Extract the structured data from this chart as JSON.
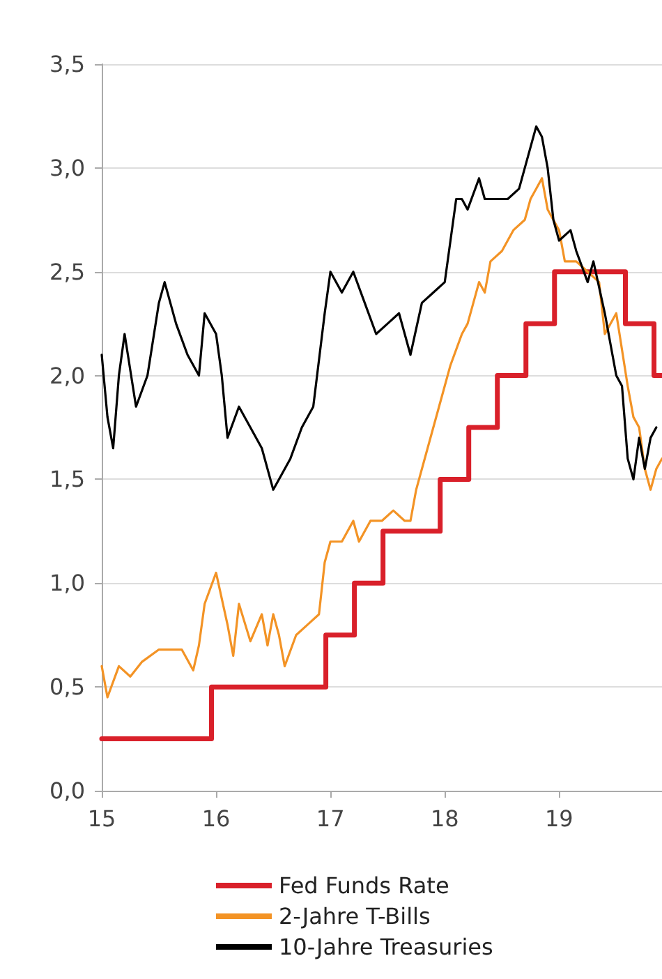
{
  "chart_data": {
    "type": "line",
    "xlim": [
      15,
      19.9
    ],
    "xticks": [
      15,
      16,
      17,
      18,
      19
    ],
    "ylim": [
      0,
      3.5
    ],
    "yticks": [
      {
        "value": 0,
        "label": "0,0"
      },
      {
        "value": 0.5,
        "label": "0,5"
      },
      {
        "value": 1,
        "label": "1,0"
      },
      {
        "value": 1.5,
        "label": "1,5"
      },
      {
        "value": 2,
        "label": "2,0"
      },
      {
        "value": 2.5,
        "label": "2,5"
      },
      {
        "value": 3,
        "label": "3,0"
      },
      {
        "value": 3.5,
        "label": "3,5"
      }
    ],
    "grid": "y",
    "legend": "bottom",
    "marker": "none",
    "line_style": "solid",
    "series": [
      {
        "name": "Fed Funds Rate",
        "type": "step",
        "color": "#d9202a",
        "x": [
          15,
          15.96,
          16.96,
          17.21,
          17.46,
          17.96,
          18.21,
          18.46,
          18.71,
          18.96,
          19.58,
          19.83,
          19.9
        ],
        "values": [
          0.25,
          0.5,
          0.75,
          1.0,
          1.25,
          1.5,
          1.75,
          2.0,
          2.25,
          2.5,
          2.25,
          2.0,
          2.0
        ]
      },
      {
        "name": "2-Jahre T-Bills",
        "type": "line",
        "color": "#f39325",
        "x": [
          15.0,
          15.05,
          15.15,
          15.25,
          15.35,
          15.5,
          15.7,
          15.8,
          15.85,
          15.9,
          16.0,
          16.1,
          16.15,
          16.2,
          16.3,
          16.4,
          16.45,
          16.5,
          16.55,
          16.6,
          16.7,
          16.8,
          16.9,
          16.95,
          17.0,
          17.1,
          17.2,
          17.25,
          17.35,
          17.45,
          17.55,
          17.65,
          17.7,
          17.75,
          17.85,
          17.95,
          18.05,
          18.15,
          18.2,
          18.3,
          18.35,
          18.4,
          18.5,
          18.6,
          18.7,
          18.75,
          18.85,
          18.9,
          19.0,
          19.05,
          19.15,
          19.25,
          19.35,
          19.4,
          19.5,
          19.6,
          19.65,
          19.7,
          19.75,
          19.8,
          19.85,
          19.9
        ],
        "values": [
          0.6,
          0.45,
          0.6,
          0.55,
          0.62,
          0.68,
          0.68,
          0.58,
          0.7,
          0.9,
          1.05,
          0.8,
          0.65,
          0.9,
          0.72,
          0.85,
          0.7,
          0.85,
          0.75,
          0.6,
          0.75,
          0.8,
          0.85,
          1.1,
          1.2,
          1.2,
          1.3,
          1.2,
          1.3,
          1.3,
          1.35,
          1.3,
          1.3,
          1.45,
          1.65,
          1.85,
          2.05,
          2.2,
          2.25,
          2.45,
          2.4,
          2.55,
          2.6,
          2.7,
          2.75,
          2.85,
          2.95,
          2.8,
          2.7,
          2.55,
          2.55,
          2.5,
          2.45,
          2.2,
          2.3,
          1.95,
          1.8,
          1.75,
          1.55,
          1.45,
          1.55,
          1.6
        ]
      },
      {
        "name": "10-Jahre Treasuries",
        "type": "line",
        "color": "#000000",
        "x": [
          15.0,
          15.05,
          15.1,
          15.15,
          15.2,
          15.3,
          15.4,
          15.5,
          15.55,
          15.65,
          15.75,
          15.85,
          15.9,
          16.0,
          16.05,
          16.1,
          16.2,
          16.3,
          16.4,
          16.5,
          16.55,
          16.65,
          16.75,
          16.85,
          16.95,
          17.0,
          17.1,
          17.2,
          17.3,
          17.4,
          17.5,
          17.6,
          17.7,
          17.8,
          17.9,
          18.0,
          18.1,
          18.15,
          18.2,
          18.3,
          18.35,
          18.45,
          18.55,
          18.65,
          18.75,
          18.8,
          18.85,
          18.9,
          18.95,
          19.0,
          19.1,
          19.15,
          19.25,
          19.3,
          19.4,
          19.45,
          19.5,
          19.55,
          19.6,
          19.65,
          19.7,
          19.75,
          19.8,
          19.85
        ],
        "values": [
          2.1,
          1.8,
          1.65,
          2.0,
          2.2,
          1.85,
          2.0,
          2.35,
          2.45,
          2.25,
          2.1,
          2.0,
          2.3,
          2.2,
          2.0,
          1.7,
          1.85,
          1.75,
          1.65,
          1.45,
          1.5,
          1.6,
          1.75,
          1.85,
          2.3,
          2.5,
          2.4,
          2.5,
          2.35,
          2.2,
          2.25,
          2.3,
          2.1,
          2.35,
          2.4,
          2.45,
          2.85,
          2.85,
          2.8,
          2.95,
          2.85,
          2.85,
          2.85,
          2.9,
          3.1,
          3.2,
          3.15,
          3.0,
          2.75,
          2.65,
          2.7,
          2.6,
          2.45,
          2.55,
          2.3,
          2.15,
          2.0,
          1.95,
          1.6,
          1.5,
          1.7,
          1.55,
          1.7,
          1.75
        ]
      }
    ]
  }
}
